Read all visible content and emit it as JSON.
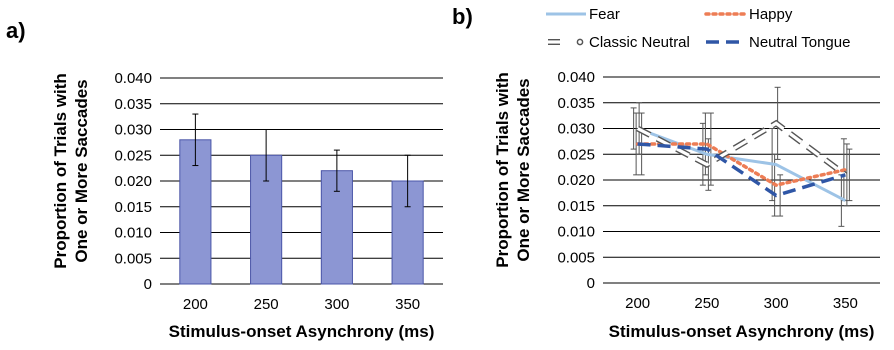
{
  "figure": {
    "panel_a_label": "a)",
    "panel_b_label": "b)"
  },
  "colors": {
    "bar_fill": "#8c96d3",
    "bar_stroke": "#4a55a8",
    "fear": "#9dc3e6",
    "happy": "#ed7d55",
    "classic_neutral": "#777777",
    "neutral_tongue": "#2f56a6",
    "grid": "#000000"
  },
  "chart_data": [
    {
      "type": "bar",
      "panel": "a)",
      "categories": [
        "200",
        "250",
        "300",
        "350"
      ],
      "values": [
        0.028,
        0.025,
        0.022,
        0.02
      ],
      "error": [
        0.005,
        0.005,
        0.004,
        0.005
      ],
      "xlabel": "Stimulus-onset Asynchrony (ms)",
      "ylabel_line1": "Proportion of Trials with",
      "ylabel_line2": "One or More Saccades",
      "ylim": [
        0,
        0.04
      ],
      "yticks": [
        "0",
        "0.005",
        "0.010",
        "0.015",
        "0.020",
        "0.025",
        "0.030",
        "0.035",
        "0.040"
      ],
      "grid": true
    },
    {
      "type": "line",
      "panel": "b)",
      "categories": [
        "200",
        "250",
        "300",
        "350"
      ],
      "series": [
        {
          "name": "Fear",
          "values": [
            0.03,
            0.025,
            0.023,
            0.016
          ],
          "error": [
            0.004,
            0.006,
            0.007,
            0.005
          ]
        },
        {
          "name": "Happy",
          "values": [
            0.027,
            0.027,
            0.019,
            0.022
          ],
          "error": [
            0.006,
            0.006,
            0.006,
            0.006
          ]
        },
        {
          "name": "Classic Neutral",
          "values": [
            0.03,
            0.023,
            0.031,
            0.021
          ],
          "error": [
            0.005,
            0.005,
            0.007,
            0.006
          ]
        },
        {
          "name": "Neutral Tongue",
          "values": [
            0.027,
            0.026,
            0.017,
            0.021
          ],
          "error": [
            0.006,
            0.007,
            0.004,
            0.005
          ]
        }
      ],
      "xlabel": "Stimulus-onset Asynchrony (ms)",
      "ylabel_line1": "Proportion of Trials with",
      "ylabel_line2": "One or More Saccades",
      "ylim": [
        0,
        0.04
      ],
      "yticks": [
        "0",
        "0.005",
        "0.010",
        "0.015",
        "0.020",
        "0.025",
        "0.030",
        "0.035",
        "0.040"
      ],
      "legend": "top",
      "grid": true
    }
  ]
}
